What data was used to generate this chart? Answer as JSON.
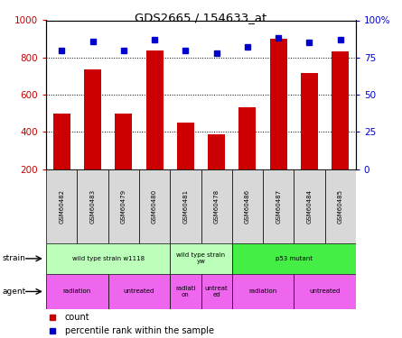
{
  "title": "GDS2665 / 154633_at",
  "samples": [
    "GSM60482",
    "GSM60483",
    "GSM60479",
    "GSM60480",
    "GSM60481",
    "GSM60478",
    "GSM60486",
    "GSM60487",
    "GSM60484",
    "GSM60485"
  ],
  "counts": [
    500,
    735,
    500,
    840,
    450,
    385,
    530,
    900,
    715,
    835
  ],
  "percentiles": [
    80,
    86,
    80,
    87,
    80,
    78,
    82,
    88,
    85,
    87
  ],
  "bar_color": "#cc0000",
  "dot_color": "#0000cc",
  "ylim_left": [
    200,
    1000
  ],
  "ylim_right": [
    0,
    100
  ],
  "yticks_left": [
    200,
    400,
    600,
    800,
    1000
  ],
  "yticks_right": [
    0,
    25,
    50,
    75,
    100
  ],
  "ytick_labels_right": [
    "0",
    "25",
    "50",
    "75",
    "100%"
  ],
  "strain_groups": [
    {
      "label": "wild type strain w1118",
      "start": 0,
      "end": 4,
      "color": "#bbffbb"
    },
    {
      "label": "wild type strain\nyw",
      "start": 4,
      "end": 6,
      "color": "#bbffbb"
    },
    {
      "label": "p53 mutant",
      "start": 6,
      "end": 10,
      "color": "#44ee44"
    }
  ],
  "agent_labels": [
    {
      "label": "radiation",
      "start": 0,
      "end": 2
    },
    {
      "label": "untreated",
      "start": 2,
      "end": 4
    },
    {
      "label": "radiati-\non",
      "start": 4,
      "end": 5
    },
    {
      "label": "untreat-\ned",
      "start": 5,
      "end": 6
    },
    {
      "label": "radiation",
      "start": 6,
      "end": 8
    },
    {
      "label": "untreated",
      "start": 8,
      "end": 10
    }
  ],
  "agent_color": "#ee66ee",
  "legend_count_label": "count",
  "legend_pct_label": "percentile rank within the sample",
  "tick_label_color_left": "#cc0000",
  "tick_label_color_right": "#0000cc",
  "grid_lines": [
    400,
    600,
    800
  ],
  "plot_bg": "#ffffff",
  "fig_bg": "#ffffff"
}
